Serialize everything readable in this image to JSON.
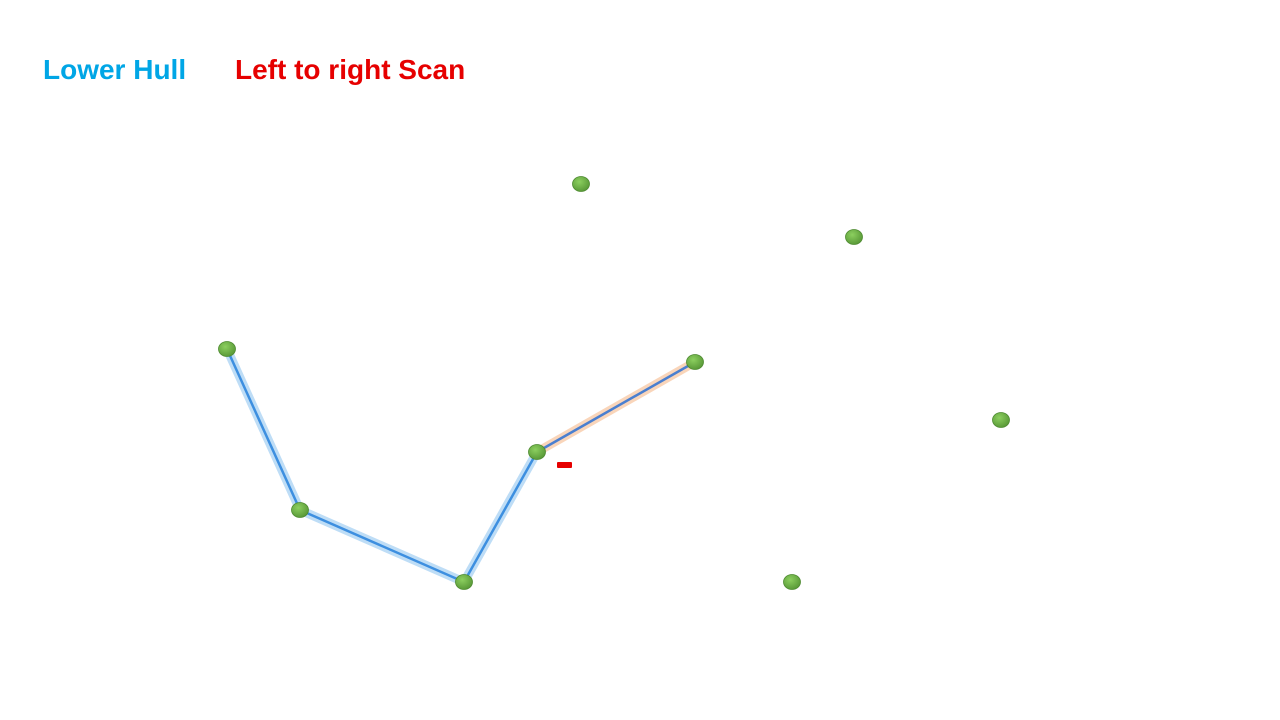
{
  "titles": {
    "lower_hull": "Lower Hull",
    "scan": "Left to right Scan"
  },
  "colors": {
    "hull_title": "#00a6e6",
    "scan_title": "#e60000",
    "hull_edge": "#3d8fe0",
    "hull_glow": "#a9d2f4",
    "candidate_edge": "#4a7fd0",
    "candidate_glow": "#f8c8a4",
    "point_fill": "#6aab45",
    "point_stroke": "#4d8a30",
    "marker": "#e60000"
  },
  "diagram": {
    "points": [
      "p1",
      "p2",
      "p3",
      "p4",
      "p5",
      "p6",
      "p7",
      "p8",
      "p9",
      "p10"
    ],
    "hull_edges": [
      [
        "p1",
        "p2"
      ],
      [
        "p2",
        "p3"
      ],
      [
        "p3",
        "p4"
      ]
    ],
    "candidate_edge": [
      "p4",
      "p5"
    ],
    "marker": "minus"
  }
}
